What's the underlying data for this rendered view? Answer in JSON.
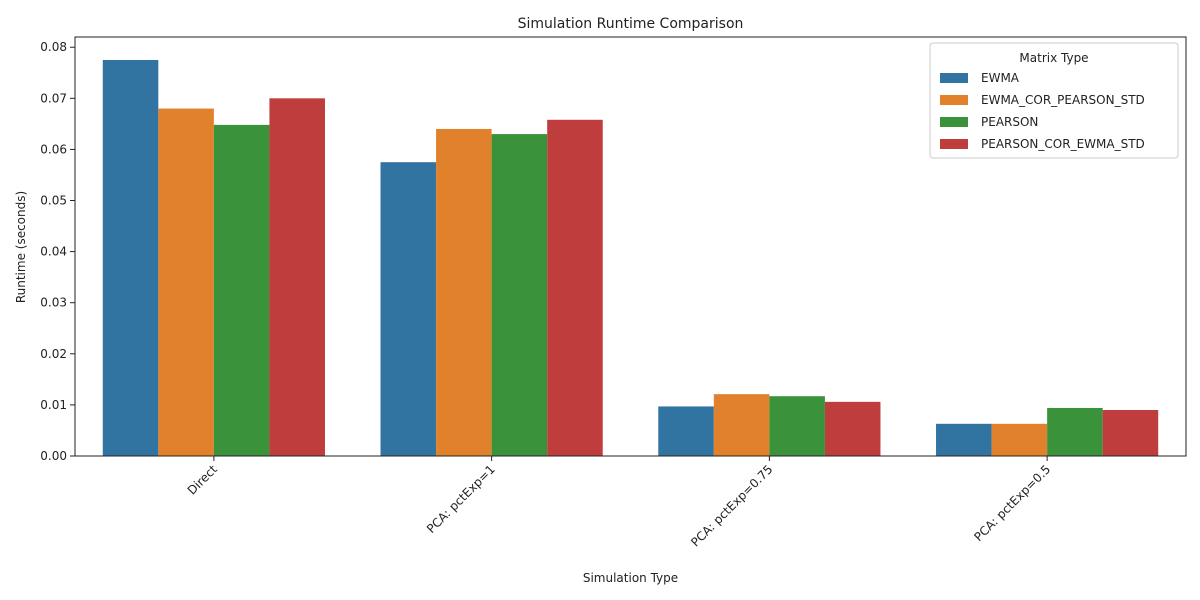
{
  "chart_data": {
    "type": "bar",
    "title": "Simulation Runtime Comparison",
    "xlabel": "Simulation Type",
    "ylabel": "Runtime (seconds)",
    "categories": [
      "Direct",
      "PCA: pctExp=1",
      "PCA: pctExp=0.75",
      "PCA: pctExp=0.5"
    ],
    "ylim": [
      0,
      0.082
    ],
    "yticks": [
      "0.00",
      "0.01",
      "0.02",
      "0.03",
      "0.04",
      "0.05",
      "0.06",
      "0.07",
      "0.08"
    ],
    "grid": false,
    "legend": {
      "title": "Matrix Type",
      "placement": "top-right"
    },
    "series": [
      {
        "name": "EWMA",
        "color": "#3274a1",
        "values": [
          0.0775,
          0.0575,
          0.0097,
          0.0063
        ]
      },
      {
        "name": "EWMA_COR_PEARSON_STD",
        "color": "#e1812c",
        "values": [
          0.068,
          0.064,
          0.0121,
          0.0063
        ]
      },
      {
        "name": "PEARSON",
        "color": "#3a923a",
        "values": [
          0.0648,
          0.063,
          0.0117,
          0.0094
        ]
      },
      {
        "name": "PEARSON_COR_EWMA_STD",
        "color": "#c03d3e",
        "values": [
          0.07,
          0.0658,
          0.0106,
          0.009
        ]
      }
    ]
  }
}
